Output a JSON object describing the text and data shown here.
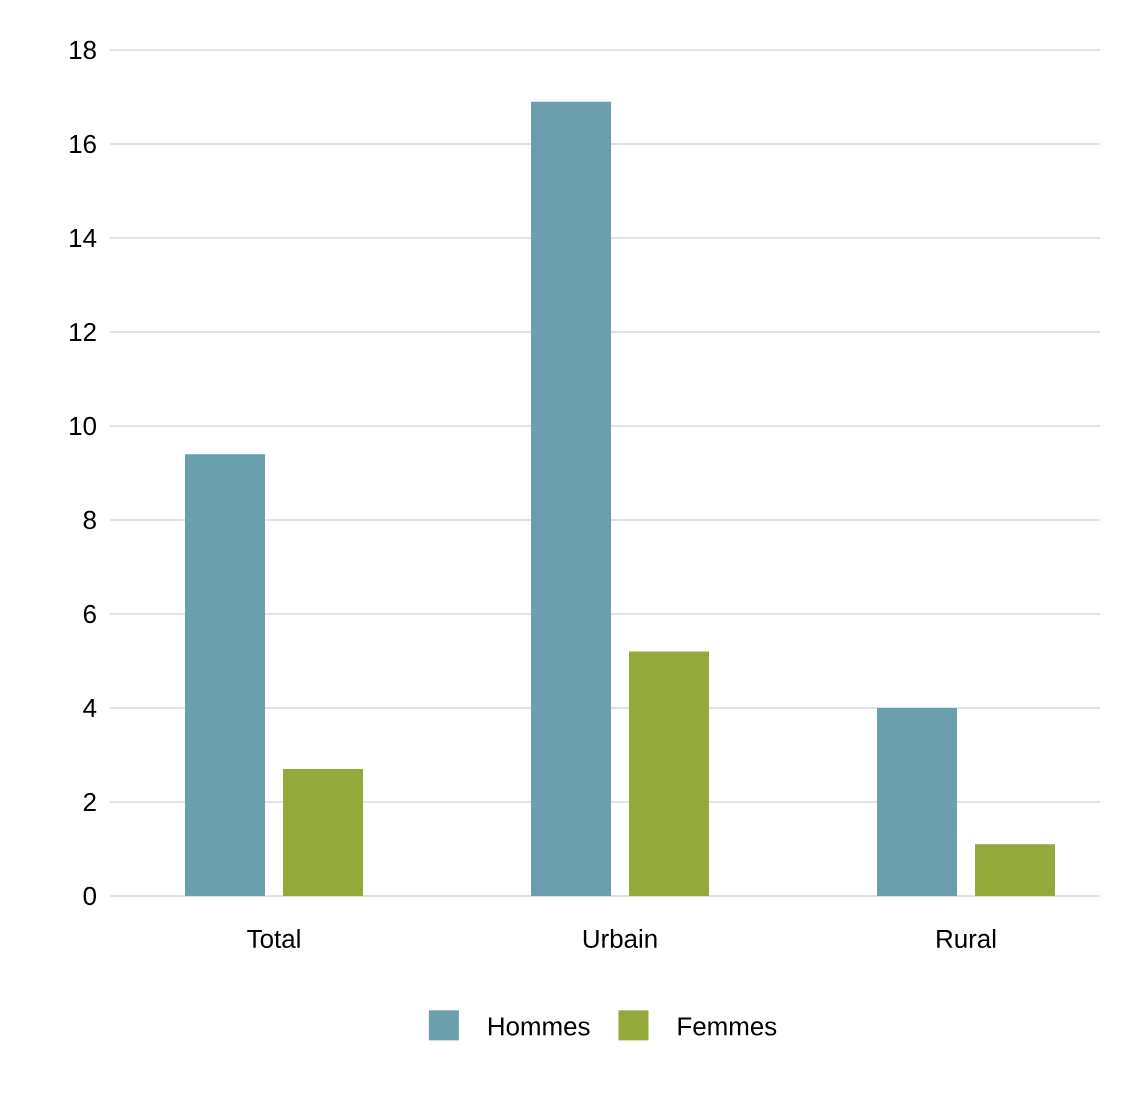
{
  "chart_data": {
    "type": "bar",
    "categories": [
      "Total",
      "Urbain",
      "Rural"
    ],
    "series": [
      {
        "name": "Hommes",
        "color": "#6a9fae",
        "values": [
          9.4,
          16.9,
          4.0
        ]
      },
      {
        "name": "Femmes",
        "color": "#93a93a",
        "values": [
          2.7,
          5.2,
          1.1
        ]
      }
    ],
    "ylim": [
      0,
      18
    ],
    "yticks": [
      0,
      2,
      4,
      6,
      8,
      10,
      12,
      14,
      16,
      18
    ],
    "grid": "y",
    "legend": "bottom"
  }
}
